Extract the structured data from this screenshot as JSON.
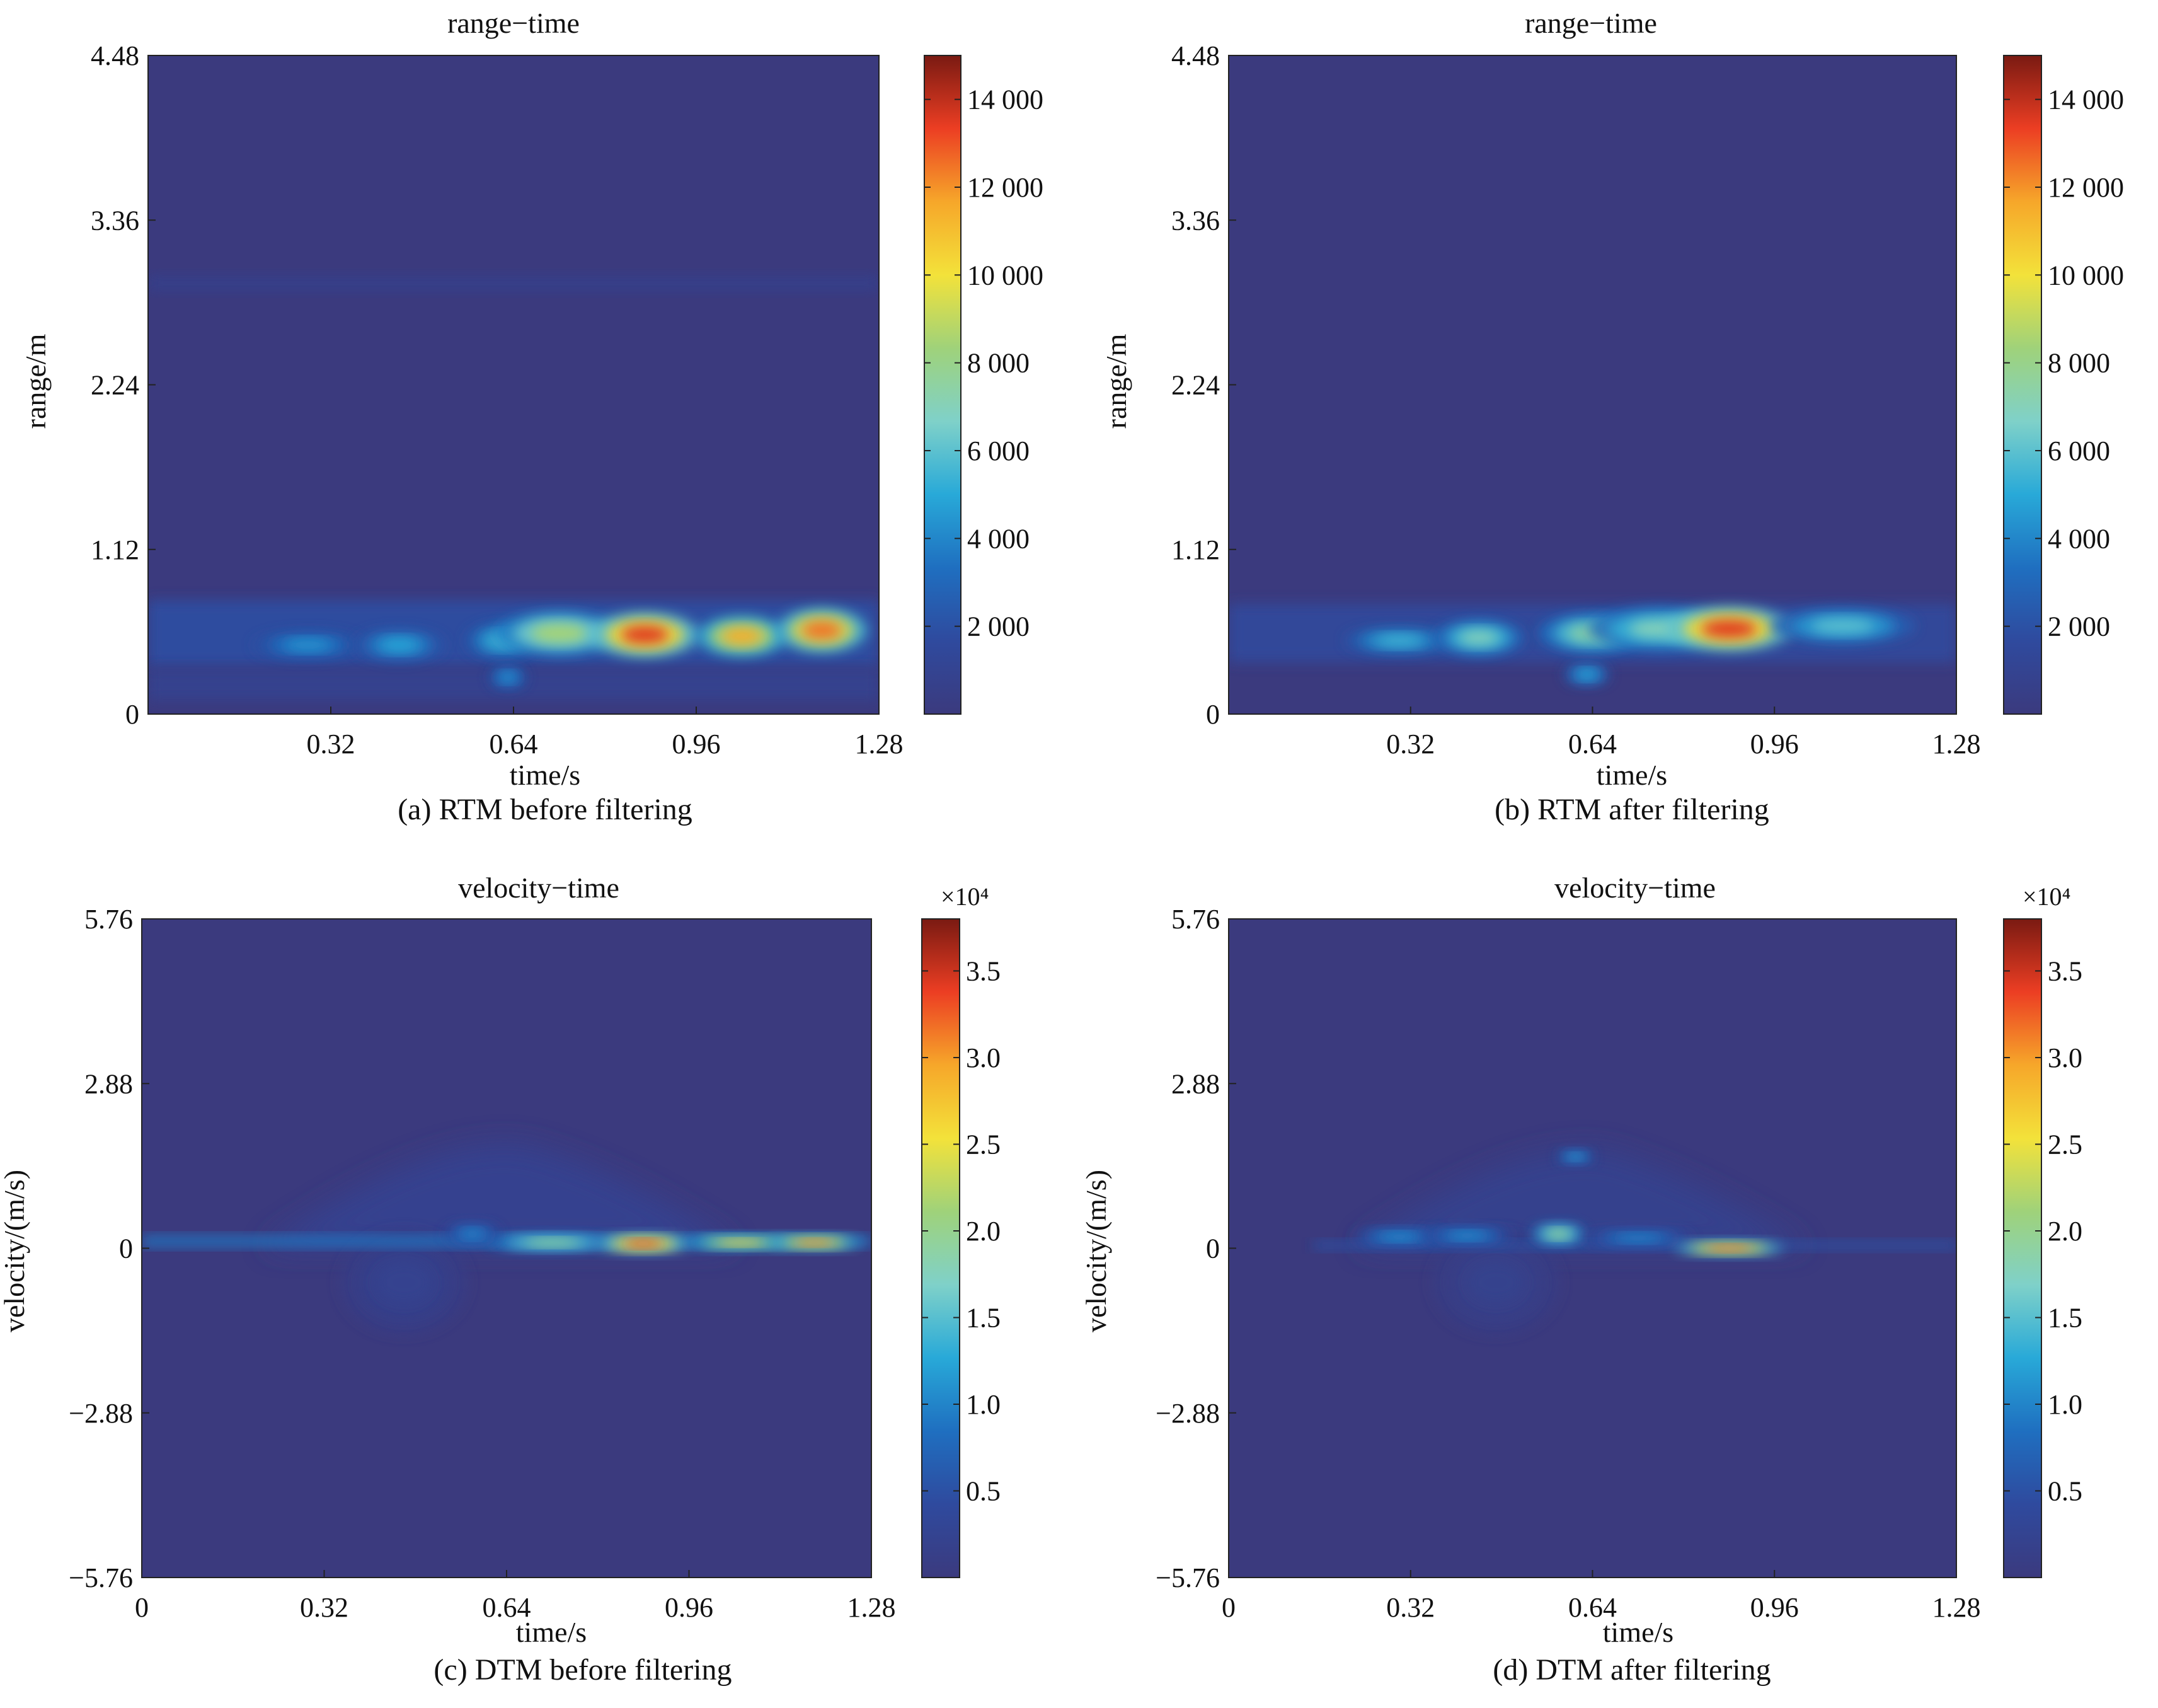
{
  "colors": {
    "background": "#3b3a7e",
    "colormap": [
      "#3b3a7e",
      "#2f4a9e",
      "#1f6fc0",
      "#28a9d8",
      "#7fd1c9",
      "#9fd27a",
      "#f3e23a",
      "#f6a72a",
      "#ec3e23",
      "#7a1a12"
    ]
  },
  "chart_data": [
    {
      "id": "a",
      "type": "heatmap",
      "title": "range−time",
      "xlabel": "time/s",
      "ylabel": "range/m",
      "caption": "(a) RTM before filtering",
      "xlim": [
        0,
        1.28
      ],
      "ylim": [
        0,
        4.48
      ],
      "xticks": [
        "0.32",
        "0.64",
        "0.96",
        "1.28"
      ],
      "yticks": [
        "0",
        "1.12",
        "2.24",
        "3.36",
        "4.48"
      ],
      "colorbar": {
        "min": 0,
        "max": 15000,
        "ticks": [
          "2 000",
          "4 000",
          "6 000",
          "8 000",
          "10 000",
          "12 000",
          "14 000"
        ],
        "tick_values": [
          2000,
          4000,
          6000,
          8000,
          10000,
          12000,
          14000
        ],
        "multiplier": ""
      },
      "features": [
        {
          "kind": "band",
          "x0": 0.0,
          "x1": 1.28,
          "y": 0.55,
          "h": 0.45,
          "v": 1800
        },
        {
          "kind": "band",
          "x0": 0.0,
          "x1": 1.28,
          "y": 0.2,
          "h": 0.22,
          "v": 900
        },
        {
          "kind": "band",
          "x0": 0.0,
          "x1": 1.28,
          "y": 2.93,
          "h": 0.1,
          "v": 700
        },
        {
          "kind": "blob",
          "x": 0.28,
          "y": 0.47,
          "rx": 0.06,
          "ry": 0.06,
          "v": 4500
        },
        {
          "kind": "blob",
          "x": 0.44,
          "y": 0.47,
          "rx": 0.05,
          "ry": 0.07,
          "v": 5000
        },
        {
          "kind": "blob",
          "x": 0.62,
          "y": 0.5,
          "rx": 0.04,
          "ry": 0.08,
          "v": 5500
        },
        {
          "kind": "blob",
          "x": 0.72,
          "y": 0.55,
          "rx": 0.07,
          "ry": 0.1,
          "v": 8500
        },
        {
          "kind": "blob",
          "x": 0.87,
          "y": 0.54,
          "rx": 0.06,
          "ry": 0.1,
          "v": 13500
        },
        {
          "kind": "blob",
          "x": 1.04,
          "y": 0.53,
          "rx": 0.05,
          "ry": 0.09,
          "v": 11500
        },
        {
          "kind": "blob",
          "x": 1.18,
          "y": 0.57,
          "rx": 0.05,
          "ry": 0.1,
          "v": 12500
        },
        {
          "kind": "blob",
          "x": 0.63,
          "y": 0.25,
          "rx": 0.02,
          "ry": 0.05,
          "v": 4500
        }
      ]
    },
    {
      "id": "b",
      "type": "heatmap",
      "title": "range−time",
      "xlabel": "time/s",
      "ylabel": "range/m",
      "caption": "(b) RTM after filtering",
      "xlim": [
        0,
        1.28
      ],
      "ylim": [
        0,
        4.48
      ],
      "xticks": [
        "0.32",
        "0.64",
        "0.96",
        "1.28"
      ],
      "yticks": [
        "0",
        "1.12",
        "2.24",
        "3.36",
        "4.48"
      ],
      "colorbar": {
        "min": 0,
        "max": 15000,
        "ticks": [
          "2 000",
          "4 000",
          "6 000",
          "8 000",
          "10 000",
          "12 000",
          "14 000"
        ],
        "tick_values": [
          2000,
          4000,
          6000,
          8000,
          10000,
          12000,
          14000
        ],
        "multiplier": ""
      },
      "features": [
        {
          "kind": "band",
          "x0": 0.0,
          "x1": 1.28,
          "y": 0.55,
          "h": 0.4,
          "v": 1500
        },
        {
          "kind": "blob",
          "x": 0.3,
          "y": 0.5,
          "rx": 0.06,
          "ry": 0.06,
          "v": 5500
        },
        {
          "kind": "blob",
          "x": 0.44,
          "y": 0.52,
          "rx": 0.05,
          "ry": 0.08,
          "v": 7000
        },
        {
          "kind": "blob",
          "x": 0.64,
          "y": 0.55,
          "rx": 0.06,
          "ry": 0.09,
          "v": 7500
        },
        {
          "kind": "blob",
          "x": 0.76,
          "y": 0.58,
          "rx": 0.08,
          "ry": 0.1,
          "v": 7000
        },
        {
          "kind": "blob",
          "x": 0.88,
          "y": 0.58,
          "rx": 0.07,
          "ry": 0.1,
          "v": 13500
        },
        {
          "kind": "blob",
          "x": 1.08,
          "y": 0.6,
          "rx": 0.08,
          "ry": 0.08,
          "v": 6000
        },
        {
          "kind": "blob",
          "x": 0.63,
          "y": 0.27,
          "rx": 0.025,
          "ry": 0.05,
          "v": 5000
        }
      ]
    },
    {
      "id": "c",
      "type": "heatmap",
      "title": "velocity−time",
      "xlabel": "time/s",
      "ylabel": "velocity/(m/s)",
      "caption": "(c) DTM before filtering",
      "xlim": [
        0,
        1.28
      ],
      "ylim": [
        -5.76,
        5.76
      ],
      "xticks": [
        "0",
        "0.32",
        "0.64",
        "0.96",
        "1.28"
      ],
      "yticks": [
        "−5.76",
        "−2.88",
        "0",
        "2.88",
        "5.76"
      ],
      "colorbar": {
        "min": 0,
        "max": 38000,
        "ticks": [
          "0.5",
          "1.0",
          "1.5",
          "2.0",
          "2.5",
          "3.0",
          "3.5"
        ],
        "tick_values": [
          5000,
          10000,
          15000,
          20000,
          25000,
          30000,
          35000
        ],
        "multiplier": "×10⁴"
      },
      "features": [
        {
          "kind": "hill",
          "x": 0.63,
          "y": 0.0,
          "rx": 0.42,
          "ry": 1.8,
          "v": 2500
        },
        {
          "kind": "blob",
          "x": 0.46,
          "y": -0.6,
          "rx": 0.07,
          "ry": 0.6,
          "v": 2200
        },
        {
          "kind": "band",
          "x0": 0.0,
          "x1": 1.28,
          "y": 0.12,
          "h": 0.18,
          "v": 9000
        },
        {
          "kind": "blob",
          "x": 0.72,
          "y": 0.1,
          "rx": 0.07,
          "ry": 0.1,
          "v": 20000
        },
        {
          "kind": "blob",
          "x": 0.88,
          "y": 0.08,
          "rx": 0.05,
          "ry": 0.1,
          "v": 34000
        },
        {
          "kind": "blob",
          "x": 1.05,
          "y": 0.1,
          "rx": 0.06,
          "ry": 0.08,
          "v": 27000
        },
        {
          "kind": "blob",
          "x": 1.18,
          "y": 0.1,
          "rx": 0.05,
          "ry": 0.08,
          "v": 31000
        },
        {
          "kind": "blob",
          "x": 0.58,
          "y": 0.25,
          "rx": 0.03,
          "ry": 0.12,
          "v": 10000
        }
      ]
    },
    {
      "id": "d",
      "type": "heatmap",
      "title": "velocity−time",
      "xlabel": "time/s",
      "ylabel": "velocity/(m/s)",
      "caption": "(d) DTM after filtering",
      "xlim": [
        0,
        1.28
      ],
      "ylim": [
        -5.76,
        5.76
      ],
      "xticks": [
        "0",
        "0.32",
        "0.64",
        "0.96",
        "1.28"
      ],
      "yticks": [
        "−5.76",
        "−2.88",
        "0",
        "2.88",
        "5.76"
      ],
      "colorbar": {
        "min": 0,
        "max": 38000,
        "ticks": [
          "0.5",
          "1.0",
          "1.5",
          "2.0",
          "2.5",
          "3.0",
          "3.5"
        ],
        "tick_values": [
          5000,
          10000,
          15000,
          20000,
          25000,
          30000,
          35000
        ],
        "multiplier": "×10⁴"
      },
      "features": [
        {
          "kind": "hill",
          "x": 0.62,
          "y": 0.0,
          "rx": 0.4,
          "ry": 1.7,
          "v": 2300
        },
        {
          "kind": "blob",
          "x": 0.47,
          "y": -0.6,
          "rx": 0.07,
          "ry": 0.6,
          "v": 2000
        },
        {
          "kind": "band",
          "x0": 0.15,
          "x1": 1.28,
          "y": 0.05,
          "h": 0.14,
          "v": 5000
        },
        {
          "kind": "blob",
          "x": 0.3,
          "y": 0.2,
          "rx": 0.05,
          "ry": 0.1,
          "v": 11000
        },
        {
          "kind": "blob",
          "x": 0.42,
          "y": 0.22,
          "rx": 0.05,
          "ry": 0.1,
          "v": 11000
        },
        {
          "kind": "blob",
          "x": 0.58,
          "y": 0.25,
          "rx": 0.03,
          "ry": 0.12,
          "v": 20000
        },
        {
          "kind": "blob",
          "x": 0.72,
          "y": 0.18,
          "rx": 0.06,
          "ry": 0.1,
          "v": 10000
        },
        {
          "kind": "blob",
          "x": 0.88,
          "y": 0.0,
          "rx": 0.06,
          "ry": 0.08,
          "v": 32000
        },
        {
          "kind": "blob",
          "x": 0.61,
          "y": 1.6,
          "rx": 0.02,
          "ry": 0.08,
          "v": 12000
        }
      ]
    }
  ]
}
